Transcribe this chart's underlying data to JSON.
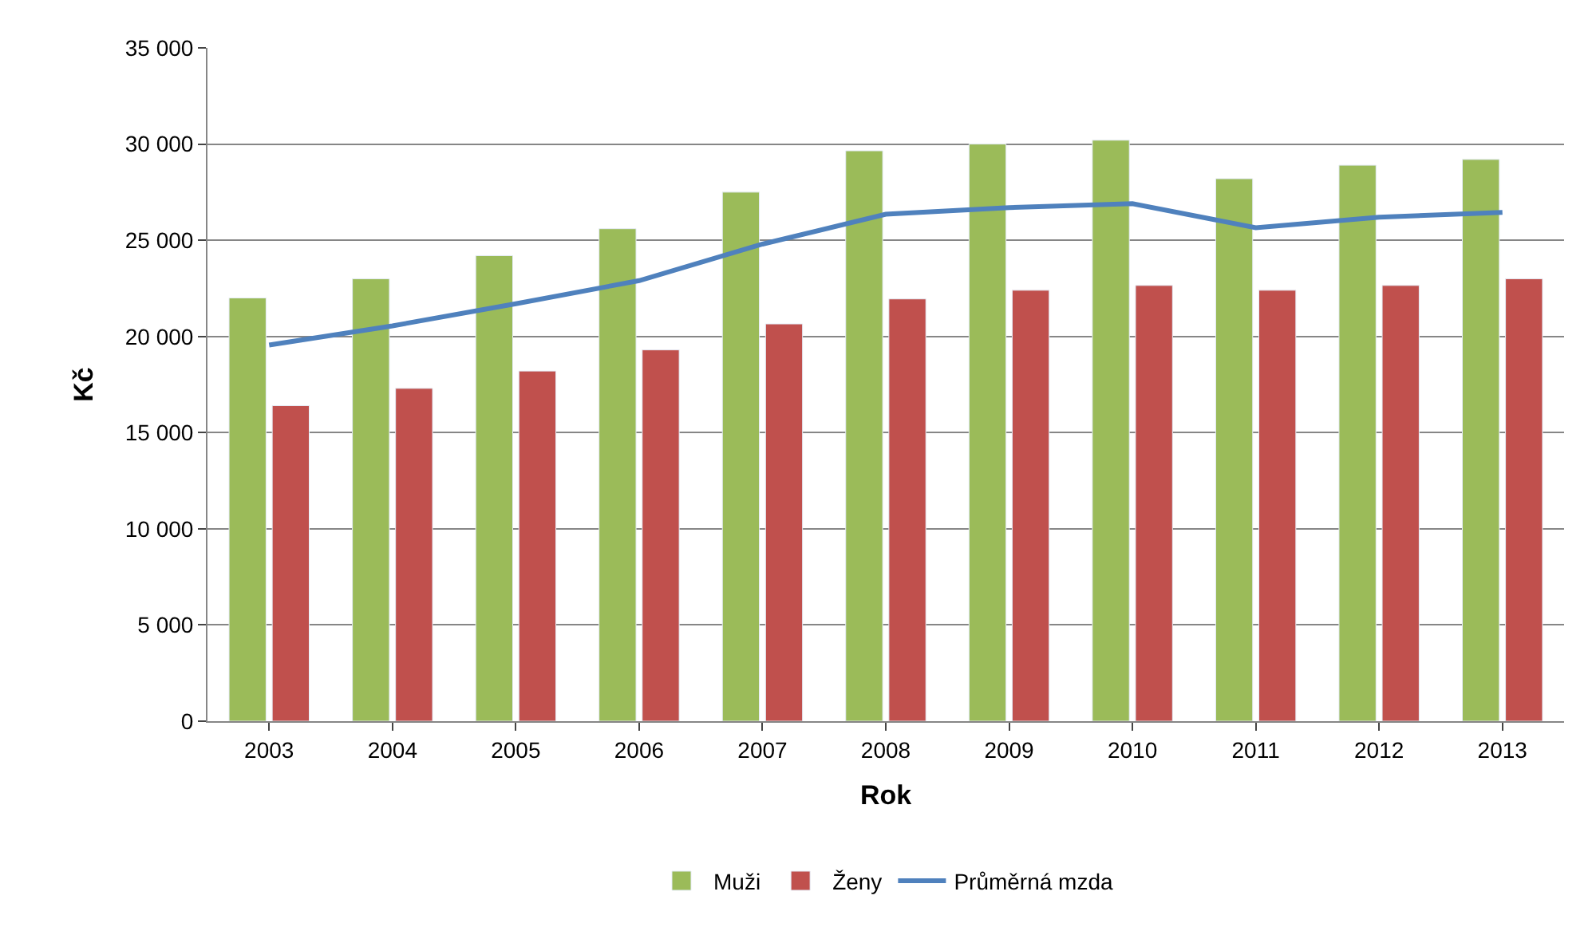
{
  "chart_data": {
    "type": "bar",
    "xlabel": "Rok",
    "ylabel": "Kč",
    "categories": [
      "2003",
      "2004",
      "2005",
      "2006",
      "2007",
      "2008",
      "2009",
      "2010",
      "2011",
      "2012",
      "2013"
    ],
    "series": [
      {
        "name": "Muži",
        "color": "#9bbb59",
        "values": [
          22000,
          23000,
          24200,
          25600,
          27500,
          29650,
          30000,
          30200,
          28200,
          28900,
          29200
        ]
      },
      {
        "name": "Ženy",
        "color": "#c0504d",
        "values": [
          16400,
          17300,
          18200,
          19300,
          20650,
          21950,
          22400,
          22650,
          22400,
          22650,
          23000
        ]
      },
      {
        "name": "Průměrná mzda",
        "type": "line",
        "color": "#4f81bd",
        "values": [
          19550,
          20550,
          21700,
          22900,
          24800,
          26350,
          26700,
          26900,
          25650,
          26200,
          26450
        ]
      }
    ],
    "ylim": [
      0,
      35000
    ],
    "yticks": [
      {
        "value": 0,
        "label": "0"
      },
      {
        "value": 5000,
        "label": "5 000"
      },
      {
        "value": 10000,
        "label": "10 000"
      },
      {
        "value": 15000,
        "label": "15 000"
      },
      {
        "value": 20000,
        "label": "20 000"
      },
      {
        "value": 25000,
        "label": "25 000"
      },
      {
        "value": 30000,
        "label": "30 000"
      },
      {
        "value": 35000,
        "label": "35 000"
      }
    ],
    "grid": "y",
    "legend": "bottom"
  }
}
